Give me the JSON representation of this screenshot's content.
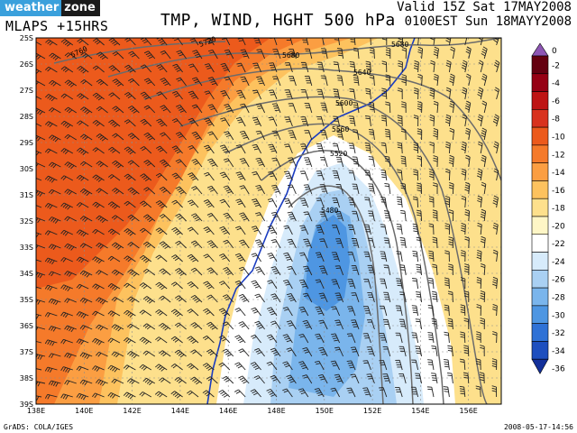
{
  "header": {
    "logo_part1": "weather",
    "logo_part2": "zone",
    "model": "MLAPS  +15HRS",
    "title": "TMP, WIND, HGHT 500 hPa",
    "valid_line1": "Valid 15Z Sat 17MAY2008",
    "valid_line2": "0100EST Sun 18MAYY2008"
  },
  "map": {
    "lat_labels": [
      "25S",
      "26S",
      "27S",
      "28S",
      "29S",
      "30S",
      "31S",
      "32S",
      "33S",
      "34S",
      "35S",
      "36S",
      "37S",
      "38S",
      "39S"
    ],
    "lon_labels": [
      "138E",
      "140E",
      "142E",
      "144E",
      "146E",
      "148E",
      "150E",
      "152E",
      "154E",
      "156E"
    ],
    "contour_labels": [
      "5760",
      "5720",
      "5680",
      "5680",
      "5640",
      "5600",
      "5560",
      "5520",
      "5480"
    ]
  },
  "colorbar": {
    "levels": [
      {
        "label": "0",
        "color": "#8e56b4"
      },
      {
        "label": "-2",
        "color": "#640010"
      },
      {
        "label": "-4",
        "color": "#960014"
      },
      {
        "label": "-6",
        "color": "#be1414"
      },
      {
        "label": "-8",
        "color": "#d8321e"
      },
      {
        "label": "-10",
        "color": "#ec5a1c"
      },
      {
        "label": "-12",
        "color": "#f57a2a"
      },
      {
        "label": "-14",
        "color": "#fb9e42"
      },
      {
        "label": "-16",
        "color": "#fdc25e"
      },
      {
        "label": "-18",
        "color": "#fde08c"
      },
      {
        "label": "-20",
        "color": "#fef6c6"
      },
      {
        "label": "-22",
        "color": "#ffffff"
      },
      {
        "label": "-24",
        "color": "#d7ebfb"
      },
      {
        "label": "-26",
        "color": "#a9d0f3"
      },
      {
        "label": "-28",
        "color": "#7ab5ec"
      },
      {
        "label": "-30",
        "color": "#4e96e2"
      },
      {
        "label": "-32",
        "color": "#2f72d6"
      },
      {
        "label": "-34",
        "color": "#1e4fbf"
      },
      {
        "label": "-36",
        "color": "#13309a"
      }
    ]
  },
  "footer": {
    "left": "GrADS: COLA/IGES",
    "right": "2008-05-17-14:56"
  }
}
